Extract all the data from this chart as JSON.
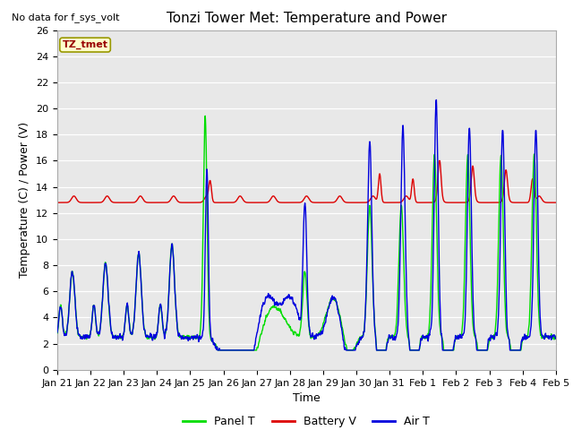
{
  "title": "Tonzi Tower Met: Temperature and Power",
  "ylabel": "Temperature (C) / Power (V)",
  "xlabel": "Time",
  "top_left_text": "No data for f_sys_volt",
  "legend_label_text": "TZ_tmet",
  "ylim": [
    0,
    26
  ],
  "yticks": [
    0,
    2,
    4,
    6,
    8,
    10,
    12,
    14,
    16,
    18,
    20,
    22,
    24,
    26
  ],
  "fig_bg_color": "#ffffff",
  "plot_bg_color": "#e8e8e8",
  "grid_color": "#ffffff",
  "title_fontsize": 11,
  "axis_label_fontsize": 9,
  "tick_label_fontsize": 8,
  "line_width": 1.0,
  "panel_color": "#00dd00",
  "battery_color": "#dd0000",
  "air_color": "#0000dd"
}
